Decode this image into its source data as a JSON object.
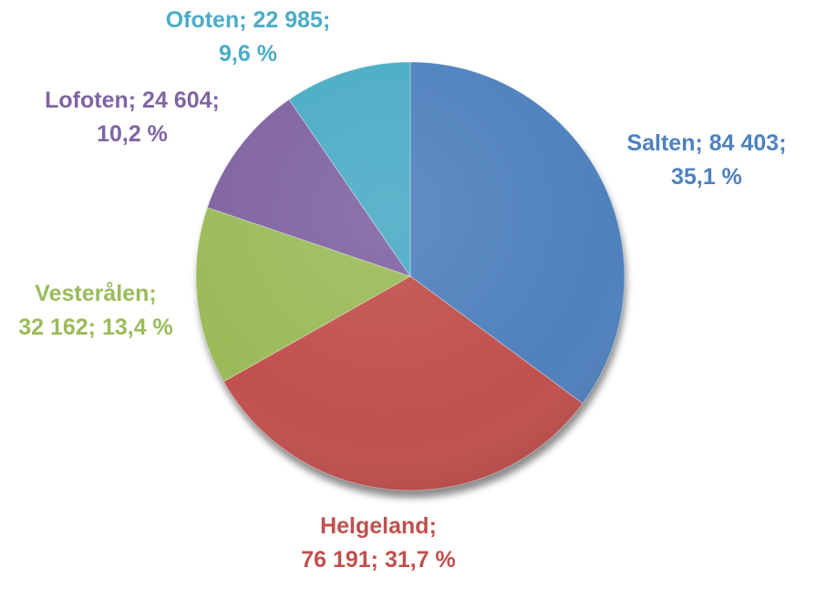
{
  "chart_data": {
    "type": "pie",
    "title": "",
    "legend": "none",
    "start_angle_deg": 0,
    "direction": "clockwise",
    "slices": [
      {
        "name": "Salten",
        "value": 84403,
        "percent": 35.1,
        "color": "#4F81BD",
        "label_lines": [
          "Salten; 84 403;",
          "35,1 %"
        ]
      },
      {
        "name": "Helgeland",
        "value": 76191,
        "percent": 31.7,
        "color": "#C0504D",
        "label_lines": [
          "Helgeland;",
          "76 191; 31,7 %"
        ]
      },
      {
        "name": "Vesterålen",
        "value": 32162,
        "percent": 13.4,
        "color": "#9BBB59",
        "label_lines": [
          "Vesterålen;",
          "32 162; 13,4 %"
        ]
      },
      {
        "name": "Lofoten",
        "value": 24604,
        "percent": 10.2,
        "color": "#8064A2",
        "label_lines": [
          "Lofoten; 24 604;",
          "10,2 %"
        ]
      },
      {
        "name": "Ofoten",
        "value": 22985,
        "percent": 9.6,
        "color": "#4BACC6",
        "label_lines": [
          "Ofoten; 22 985;",
          "9,6 %"
        ]
      }
    ]
  }
}
